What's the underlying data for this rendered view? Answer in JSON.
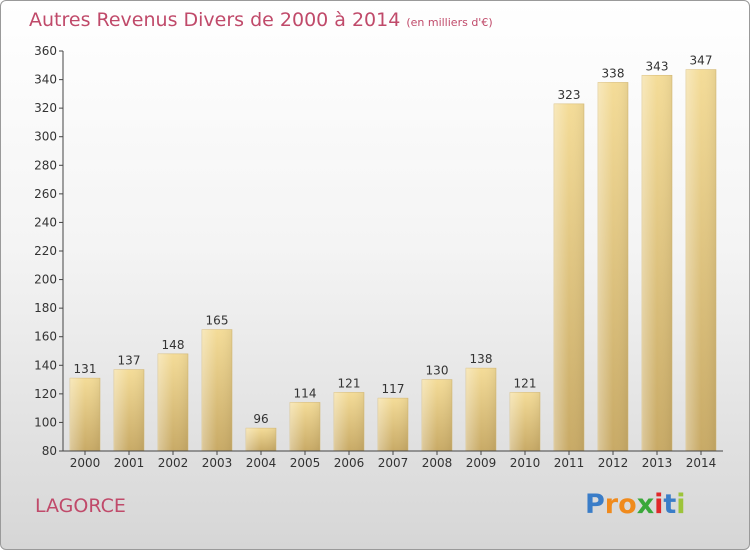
{
  "header": {
    "title": "Autres Revenus Divers de 2000 à 2014",
    "unit": "(en milliers d'€)"
  },
  "footer": {
    "location": "LAGORCE",
    "brand": [
      "P",
      "r",
      "o",
      "x",
      "i",
      "t",
      "i"
    ]
  },
  "colors": {
    "title": "#c04a6a",
    "bar_light": "#f4dc98",
    "bar_dark": "#c8aa66",
    "brand_letters": [
      "#3a7dc8",
      "#f08a1c",
      "#f08a1c",
      "#3aa83a",
      "#e0282a",
      "#3a7dc8",
      "#9dc43a"
    ]
  },
  "chart_data": {
    "type": "bar",
    "title": "Autres Revenus Divers de 2000 à 2014",
    "subtitle": "(en milliers d'€)",
    "categories": [
      "2000",
      "2001",
      "2002",
      "2003",
      "2004",
      "2005",
      "2006",
      "2007",
      "2008",
      "2009",
      "2010",
      "2011",
      "2012",
      "2013",
      "2014"
    ],
    "values": [
      131,
      137,
      148,
      165,
      96,
      114,
      121,
      117,
      130,
      138,
      121,
      323,
      338,
      343,
      347
    ],
    "ylim": [
      80,
      360
    ],
    "yticks": [
      80,
      100,
      120,
      140,
      160,
      180,
      200,
      220,
      240,
      260,
      280,
      300,
      320,
      340,
      360
    ],
    "grid": false,
    "data_labels": true
  }
}
